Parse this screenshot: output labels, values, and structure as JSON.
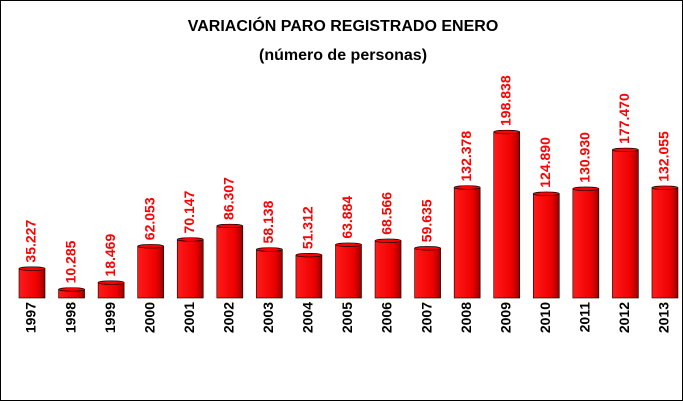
{
  "chart_data": {
    "type": "bar",
    "title": "VARIACIÓN PARO REGISTRADO ENERO",
    "subtitle": "(número de personas)",
    "categories": [
      "1997",
      "1998",
      "1999",
      "2000",
      "2001",
      "2002",
      "2003",
      "2004",
      "2005",
      "2006",
      "2007",
      "2008",
      "2009",
      "2010",
      "2011",
      "2012",
      "2013"
    ],
    "values": [
      35227,
      10285,
      18469,
      62053,
      70147,
      86307,
      58138,
      51312,
      63884,
      68566,
      59635,
      132378,
      198838,
      124890,
      130930,
      177470,
      132055
    ],
    "value_labels": [
      "35.227",
      "10.285",
      "18.469",
      "62.053",
      "70.147",
      "86.307",
      "58.138",
      "51.312",
      "63.884",
      "68.566",
      "59.635",
      "132.378",
      "198.838",
      "124.890",
      "130.930",
      "177.470",
      "132.055"
    ],
    "color": "#ff0000"
  }
}
